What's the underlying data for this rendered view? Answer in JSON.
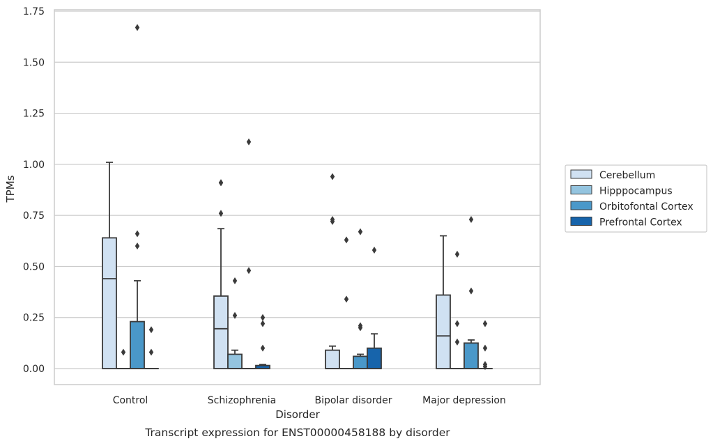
{
  "chart_data": {
    "type": "box",
    "title": "Transcript expression for ENST00000458188 by disorder",
    "xlabel": "Disorder",
    "ylabel": "TPMs",
    "categories": [
      "Control",
      "Schizophrenia",
      "Bipolar disorder",
      "Major depression"
    ],
    "ylim": [
      -0.08,
      1.76
    ],
    "yticks": [
      0.0,
      0.25,
      0.5,
      0.75,
      1.0,
      1.25,
      1.5,
      1.75
    ],
    "ytick_labels": [
      "0.00",
      "0.25",
      "0.50",
      "0.75",
      "1.00",
      "1.25",
      "1.50",
      "1.75"
    ],
    "grid": "horizontal",
    "legend_position": "right",
    "series": [
      {
        "name": "Cerebellum",
        "color": "#d0e1f2",
        "boxes": [
          {
            "category": "Control",
            "q1": 0.0,
            "median": 0.44,
            "q3": 0.64,
            "whisker_low": 0.0,
            "whisker_high": 1.01,
            "outliers": []
          },
          {
            "category": "Schizophrenia",
            "q1": 0.0,
            "median": 0.195,
            "q3": 0.355,
            "whisker_low": 0.0,
            "whisker_high": 0.685,
            "outliers": [
              0.91,
              0.91,
              0.76
            ]
          },
          {
            "category": "Bipolar disorder",
            "q1": 0.0,
            "median": 0.0,
            "q3": 0.09,
            "whisker_low": 0.0,
            "whisker_high": 0.11,
            "outliers": [
              0.94,
              0.73,
              0.72
            ]
          },
          {
            "category": "Major depression",
            "q1": 0.0,
            "median": 0.16,
            "q3": 0.36,
            "whisker_low": 0.0,
            "whisker_high": 0.65,
            "outliers": []
          }
        ]
      },
      {
        "name": "Hipppocampus",
        "color": "#94c4df",
        "boxes": [
          {
            "category": "Control",
            "q1": 0.0,
            "median": 0.0,
            "q3": 0.0,
            "whisker_low": 0.0,
            "whisker_high": 0.0,
            "outliers": [
              0.08
            ]
          },
          {
            "category": "Schizophrenia",
            "q1": 0.0,
            "median": 0.0,
            "q3": 0.07,
            "whisker_low": 0.0,
            "whisker_high": 0.09,
            "outliers": [
              0.43,
              0.26
            ]
          },
          {
            "category": "Bipolar disorder",
            "q1": 0.0,
            "median": 0.0,
            "q3": 0.0,
            "whisker_low": 0.0,
            "whisker_high": 0.0,
            "outliers": [
              0.63,
              0.34
            ]
          },
          {
            "category": "Major depression",
            "q1": 0.0,
            "median": 0.0,
            "q3": 0.0,
            "whisker_low": 0.0,
            "whisker_high": 0.0,
            "outliers": [
              0.56,
              0.22,
              0.13
            ]
          }
        ]
      },
      {
        "name": "Orbitofontal Cortex",
        "color": "#4a98c9",
        "boxes": [
          {
            "category": "Control",
            "q1": 0.0,
            "median": 0.0,
            "q3": 0.23,
            "whisker_low": 0.0,
            "whisker_high": 0.43,
            "outliers": [
              1.67,
              0.66,
              0.6
            ]
          },
          {
            "category": "Schizophrenia",
            "q1": 0.0,
            "median": 0.0,
            "q3": 0.0,
            "whisker_low": 0.0,
            "whisker_high": 0.0,
            "outliers": [
              1.11,
              0.48
            ]
          },
          {
            "category": "Bipolar disorder",
            "q1": 0.0,
            "median": 0.0,
            "q3": 0.06,
            "whisker_low": 0.0,
            "whisker_high": 0.07,
            "outliers": [
              0.67,
              0.21,
              0.2
            ]
          },
          {
            "category": "Major depression",
            "q1": 0.0,
            "median": 0.0,
            "q3": 0.125,
            "whisker_low": 0.0,
            "whisker_high": 0.14,
            "outliers": [
              0.73,
              0.38
            ]
          }
        ]
      },
      {
        "name": "Prefrontal Cortex",
        "color": "#1764ab",
        "boxes": [
          {
            "category": "Control",
            "q1": 0.0,
            "median": 0.0,
            "q3": 0.0,
            "whisker_low": 0.0,
            "whisker_high": 0.0,
            "outliers": [
              0.19,
              0.08
            ]
          },
          {
            "category": "Schizophrenia",
            "q1": 0.0,
            "median": 0.0,
            "q3": 0.015,
            "whisker_low": 0.0,
            "whisker_high": 0.02,
            "outliers": [
              0.25,
              0.22,
              0.1
            ]
          },
          {
            "category": "Bipolar disorder",
            "q1": 0.0,
            "median": 0.0,
            "q3": 0.1,
            "whisker_low": 0.0,
            "whisker_high": 0.17,
            "outliers": [
              0.58
            ]
          },
          {
            "category": "Major depression",
            "q1": 0.0,
            "median": 0.0,
            "q3": 0.0,
            "whisker_low": 0.0,
            "whisker_high": 0.0,
            "outliers": [
              0.22,
              0.1,
              0.02,
              0.01
            ]
          }
        ]
      }
    ]
  }
}
